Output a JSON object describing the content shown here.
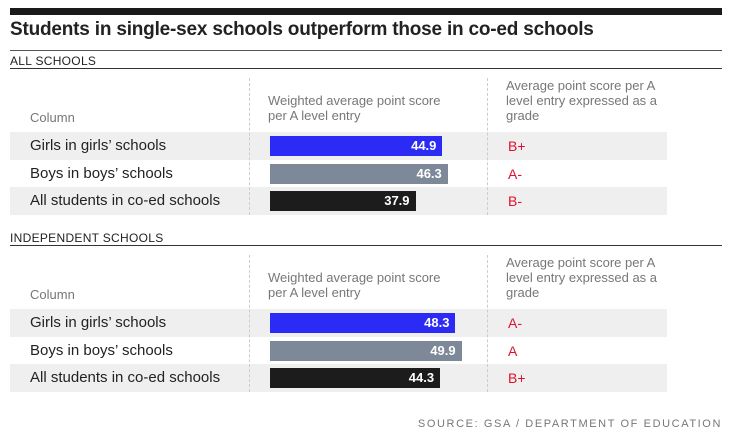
{
  "title": "Students in single-sex schools outperform those in co-ed schools",
  "sections": [
    {
      "title": "ALL SCHOOLS",
      "columns": [
        "Column",
        "Weighted average point score per A level entry",
        "Average point score per A level entry expressed as a grade"
      ],
      "rows": [
        {
          "label": "Girls in girls’ schools",
          "value": 44.9,
          "grade": "B+",
          "color": "#2b2bf5"
        },
        {
          "label": "Boys in boys’ schools",
          "value": 46.3,
          "grade": "A-",
          "color": "#7d8898"
        },
        {
          "label": "All students in co-ed schools",
          "value": 37.9,
          "grade": "B-",
          "color": "#1c1c1c"
        }
      ]
    },
    {
      "title": "INDEPENDENT SCHOOLS",
      "columns": [
        "Column",
        "Weighted average point score per A level entry",
        "Average point score per A level entry expressed as a grade"
      ],
      "rows": [
        {
          "label": "Girls in girls’ schools",
          "value": 48.3,
          "grade": "A-",
          "color": "#2b2bf5"
        },
        {
          "label": "Boys in boys’ schools",
          "value": 49.9,
          "grade": "A",
          "color": "#7d8898"
        },
        {
          "label": "All students in co-ed schools",
          "value": 44.3,
          "grade": "B+",
          "color": "#1c1c1c"
        }
      ]
    }
  ],
  "source": "SOURCE: GSA / DEPARTMENT OF EDUCATION"
}
